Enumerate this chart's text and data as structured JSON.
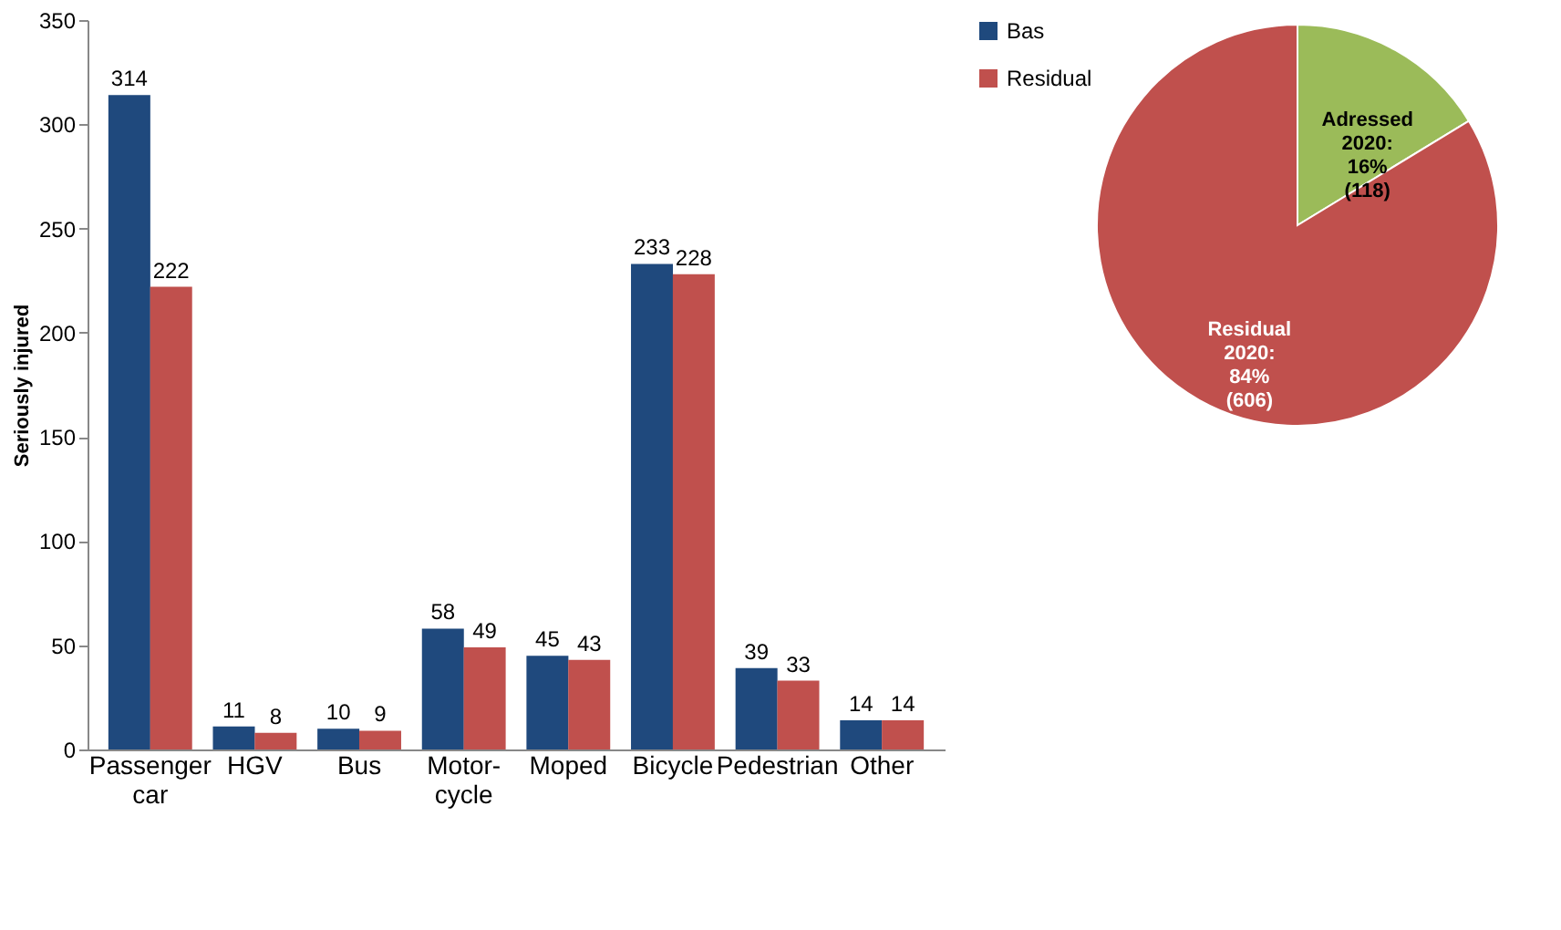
{
  "chart_data": [
    {
      "type": "bar",
      "ylabel": "Seriously injured",
      "categories": [
        "Passenger car",
        "HGV",
        "Bus",
        "Motor-cycle",
        "Moped",
        "Bicycle",
        "Pedestrian",
        "Other"
      ],
      "series": [
        {
          "name": "Bas",
          "color": "#1f497d",
          "values": [
            314,
            11,
            10,
            58,
            45,
            233,
            39,
            14
          ]
        },
        {
          "name": "Residual",
          "color": "#c0504d",
          "values": [
            222,
            8,
            9,
            49,
            43,
            228,
            33,
            14
          ]
        }
      ],
      "ylim": [
        0,
        350
      ],
      "yticks": [
        0,
        50,
        100,
        150,
        200,
        250,
        300,
        350
      ],
      "grid": false,
      "legend": "right",
      "data_labels": true
    },
    {
      "type": "pie",
      "categories": [
        "Adressed 2020: 16% (118)",
        "Residual 2020: 84% (606)"
      ],
      "values": [
        118,
        606
      ],
      "colors": [
        "#9bbb59",
        "#c0504d"
      ],
      "legend": false
    }
  ]
}
